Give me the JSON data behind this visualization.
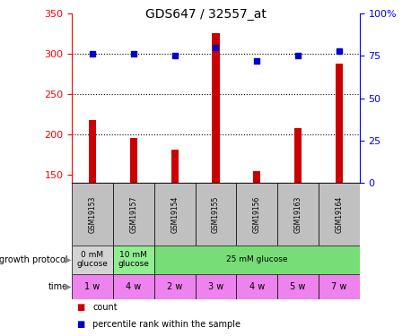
{
  "title": "GDS647 / 32557_at",
  "samples": [
    "GSM19153",
    "GSM19157",
    "GSM19154",
    "GSM19155",
    "GSM19156",
    "GSM19163",
    "GSM19164"
  ],
  "counts": [
    218,
    196,
    182,
    326,
    155,
    208,
    288
  ],
  "percentile_ranks": [
    76,
    76,
    75,
    80,
    72,
    75,
    78
  ],
  "ylim_left": [
    140,
    350
  ],
  "ylim_right": [
    0,
    100
  ],
  "yticks_left": [
    150,
    200,
    250,
    300,
    350
  ],
  "yticks_right": [
    0,
    25,
    50,
    75,
    100
  ],
  "bar_color": "#cc0000",
  "dot_color": "#0000cc",
  "background_color": "#ffffff",
  "gp_groups": [
    {
      "start": 0,
      "end": 1,
      "label": "0 mM\nglucose",
      "color": "#d3d3d3"
    },
    {
      "start": 1,
      "end": 2,
      "label": "10 mM\nglucose",
      "color": "#90ee90"
    },
    {
      "start": 2,
      "end": 7,
      "label": "25 mM glucose",
      "color": "#77dd77"
    }
  ],
  "time_labels": [
    "1 w",
    "4 w",
    "2 w",
    "3 w",
    "4 w",
    "5 w",
    "7 w"
  ],
  "time_color": "#ee82ee",
  "sample_header_color": "#c0c0c0"
}
